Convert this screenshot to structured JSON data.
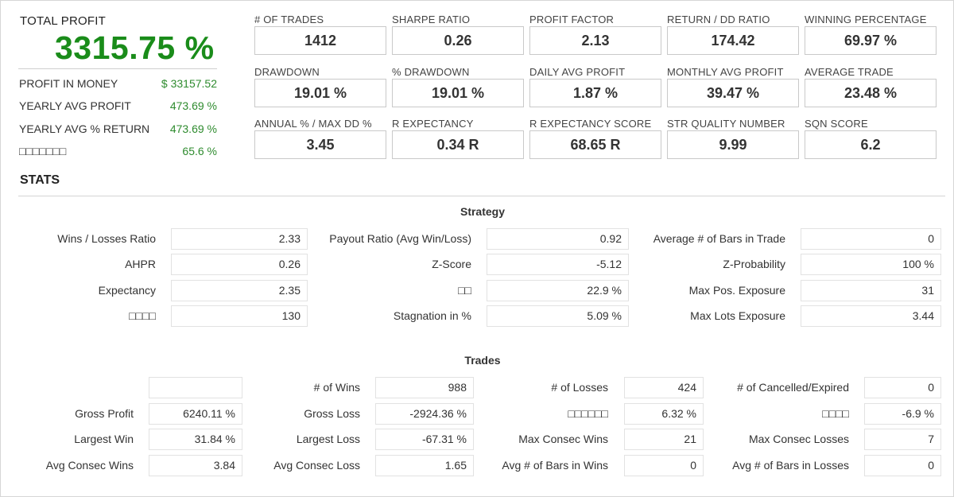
{
  "total_profit": {
    "label": "TOTAL PROFIT",
    "value": "3315.75 %",
    "rows": [
      {
        "label": "PROFIT IN MONEY",
        "value": "$ 33157.52"
      },
      {
        "label": "YEARLY AVG PROFIT",
        "value": "473.69 %"
      },
      {
        "label": "YEARLY AVG % RETURN",
        "value": "473.69 %"
      },
      {
        "label": "□□□□□□□",
        "value": "65.6 %"
      }
    ]
  },
  "kpis": [
    {
      "label": "# OF TRADES",
      "value": "1412"
    },
    {
      "label": "SHARPE RATIO",
      "value": "0.26"
    },
    {
      "label": "PROFIT FACTOR",
      "value": "2.13"
    },
    {
      "label": "RETURN / DD RATIO",
      "value": "174.42"
    },
    {
      "label": "WINNING PERCENTAGE",
      "value": "69.97 %"
    },
    {
      "label": "DRAWDOWN",
      "value": "19.01 %"
    },
    {
      "label": "% DRAWDOWN",
      "value": "19.01 %"
    },
    {
      "label": "DAILY AVG PROFIT",
      "value": "1.87 %"
    },
    {
      "label": "MONTHLY AVG PROFIT",
      "value": "39.47 %"
    },
    {
      "label": "AVERAGE TRADE",
      "value": "23.48 %"
    },
    {
      "label": "ANNUAL % / MAX DD %",
      "value": "3.45"
    },
    {
      "label": "R EXPECTANCY",
      "value": "0.34 R"
    },
    {
      "label": "R EXPECTANCY SCORE",
      "value": "68.65 R"
    },
    {
      "label": "STR QUALITY NUMBER",
      "value": "9.99"
    },
    {
      "label": "SQN SCORE",
      "value": "6.2"
    }
  ],
  "stats": {
    "title": "STATS",
    "strategy": {
      "title": "Strategy",
      "rows": [
        [
          {
            "label": "Wins / Losses Ratio",
            "value": "2.33"
          },
          {
            "label": "Payout Ratio (Avg Win/Loss)",
            "value": "0.92"
          },
          {
            "label": "Average # of Bars in Trade",
            "value": "0"
          }
        ],
        [
          {
            "label": "AHPR",
            "value": "0.26"
          },
          {
            "label": "Z-Score",
            "value": "-5.12"
          },
          {
            "label": "Z-Probability",
            "value": "100 %"
          }
        ],
        [
          {
            "label": "Expectancy",
            "value": "2.35"
          },
          {
            "label": "□□",
            "value": "22.9 %"
          },
          {
            "label": "Max Pos. Exposure",
            "value": "31"
          }
        ],
        [
          {
            "label": "□□□□",
            "value": "130"
          },
          {
            "label": "Stagnation in %",
            "value": "5.09 %"
          },
          {
            "label": "Max Lots Exposure",
            "value": "3.44"
          }
        ]
      ]
    },
    "trades": {
      "title": "Trades",
      "rows": [
        [
          {
            "label": "",
            "value": ""
          },
          {
            "label": "# of Wins",
            "value": "988"
          },
          {
            "label": "# of Losses",
            "value": "424"
          },
          {
            "label": "# of Cancelled/Expired",
            "value": "0"
          }
        ],
        [
          {
            "label": "Gross Profit",
            "value": "6240.11 %"
          },
          {
            "label": "Gross Loss",
            "value": "-2924.36 %"
          },
          {
            "label": "□□□□□□",
            "value": "6.32 %"
          },
          {
            "label": "□□□□",
            "value": "-6.9 %"
          }
        ],
        [
          {
            "label": "Largest Win",
            "value": "31.84 %"
          },
          {
            "label": "Largest Loss",
            "value": "-67.31 %"
          },
          {
            "label": "Max Consec Wins",
            "value": "21"
          },
          {
            "label": "Max Consec Losses",
            "value": "7"
          }
        ],
        [
          {
            "label": "Avg Consec Wins",
            "value": "3.84"
          },
          {
            "label": "Avg Consec Loss",
            "value": "1.65"
          },
          {
            "label": "Avg # of Bars in Wins",
            "value": "0"
          },
          {
            "label": "Avg # of Bars in Losses",
            "value": "0"
          }
        ]
      ]
    }
  },
  "colors": {
    "profit_green": "#1a8c1a",
    "value_green": "#2e8b2e",
    "border": "#c9c9c9"
  }
}
